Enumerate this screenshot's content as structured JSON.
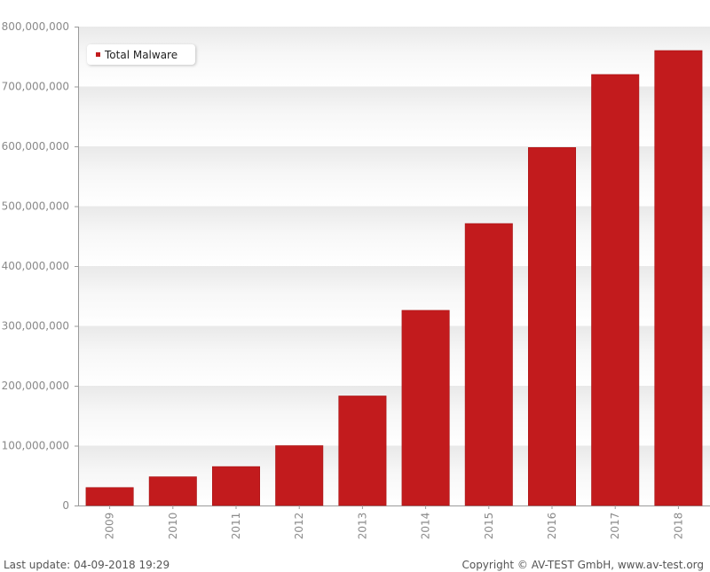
{
  "chart_data": {
    "type": "bar",
    "title": "",
    "xlabel": "",
    "ylabel": "",
    "categories": [
      "2009",
      "2010",
      "2011",
      "2012",
      "2013",
      "2014",
      "2015",
      "2016",
      "2017",
      "2018"
    ],
    "series": [
      {
        "name": "Total Malware",
        "color": "#c21b1d",
        "values": [
          30000000,
          48000000,
          65000000,
          100000000,
          183000000,
          326000000,
          471000000,
          598000000,
          720000000,
          760000000
        ]
      }
    ],
    "ylim": [
      0,
      800000000
    ],
    "yticks": [
      0,
      100000000,
      200000000,
      300000000,
      400000000,
      500000000,
      600000000,
      700000000,
      800000000
    ],
    "ytick_labels": [
      "0",
      "100,000,000",
      "200,000,000",
      "300,000,000",
      "400,000,000",
      "500,000,000",
      "600,000,000",
      "700,000,000",
      "800,000,000"
    ],
    "legend_position": "top-left",
    "grid": "horizontal bands",
    "x_tick_rotation": "vertical"
  },
  "legend": {
    "label": "Total Malware",
    "color": "#c21b1d"
  },
  "footer": {
    "last_update": "Last update: 04-09-2018 19:29",
    "copyright": "Copyright © AV-TEST GmbH, www.av-test.org"
  }
}
